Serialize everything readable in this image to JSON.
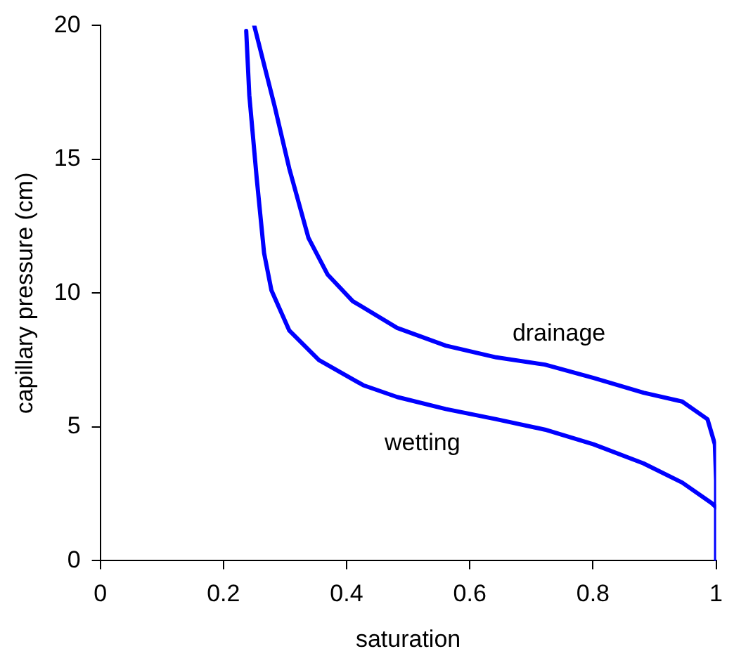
{
  "chart_data": {
    "type": "line",
    "xlabel": "saturation",
    "ylabel": "capillary pressure (cm)",
    "xlim": [
      0,
      1
    ],
    "ylim": [
      0,
      20
    ],
    "xticks": [
      0,
      0.2,
      0.4,
      0.6,
      0.8,
      1
    ],
    "yticks": [
      0,
      5,
      10,
      15,
      20
    ],
    "grid": false,
    "legend": false,
    "marker": "none",
    "line_style": "solid",
    "series": [
      {
        "name": "drainage",
        "color": "#0000ff",
        "x": [
          0.25,
          0.283,
          0.307,
          0.338,
          0.369,
          0.41,
          0.482,
          0.561,
          0.643,
          0.722,
          0.801,
          0.882,
          0.945,
          0.986,
          0.998,
          1,
          1
        ],
        "values": [
          20,
          17,
          14.65,
          12.07,
          10.7,
          9.7,
          8.7,
          8.04,
          7.6,
          7.33,
          6.83,
          6.28,
          5.95,
          5.29,
          4.35,
          3,
          0
        ]
      },
      {
        "name": "wetting",
        "color": "#0000ff",
        "x": [
          0.237,
          0.242,
          0.254,
          0.266,
          0.278,
          0.307,
          0.355,
          0.427,
          0.482,
          0.561,
          0.643,
          0.722,
          0.801,
          0.882,
          0.945,
          0.993,
          1
        ],
        "values": [
          19.8,
          17.4,
          14.3,
          11.5,
          10.1,
          8.6,
          7.5,
          6.56,
          6.12,
          5.67,
          5.29,
          4.9,
          4.35,
          3.64,
          2.92,
          2.15,
          2
        ]
      }
    ]
  }
}
